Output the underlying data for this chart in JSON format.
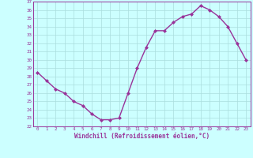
{
  "x": [
    0,
    1,
    2,
    3,
    4,
    5,
    6,
    7,
    8,
    9,
    10,
    11,
    12,
    13,
    14,
    15,
    16,
    17,
    18,
    19,
    20,
    21,
    22,
    23
  ],
  "y": [
    28.5,
    27.5,
    26.5,
    26.0,
    25.0,
    24.5,
    23.5,
    22.8,
    22.8,
    23.0,
    26.0,
    29.0,
    31.5,
    33.5,
    33.5,
    34.5,
    35.2,
    35.5,
    36.5,
    36.0,
    35.2,
    34.0,
    32.0,
    30.0
  ],
  "line_color": "#993399",
  "marker": "D",
  "markersize": 2.0,
  "bg_color": "#ccffff",
  "grid_color": "#aadddd",
  "xlabel": "Windchill (Refroidissement éolien,°C)",
  "xlabel_color": "#993399",
  "tick_color": "#993399",
  "ylim": [
    22,
    37
  ],
  "xlim": [
    -0.5,
    23.5
  ],
  "yticks": [
    22,
    23,
    24,
    25,
    26,
    27,
    28,
    29,
    30,
    31,
    32,
    33,
    34,
    35,
    36,
    37
  ],
  "xticks": [
    0,
    1,
    2,
    3,
    4,
    5,
    6,
    7,
    8,
    9,
    10,
    11,
    12,
    13,
    14,
    15,
    16,
    17,
    18,
    19,
    20,
    21,
    22,
    23
  ],
  "linewidth": 1.0,
  "tick_fontsize": 4.2,
  "xlabel_fontsize": 5.5
}
